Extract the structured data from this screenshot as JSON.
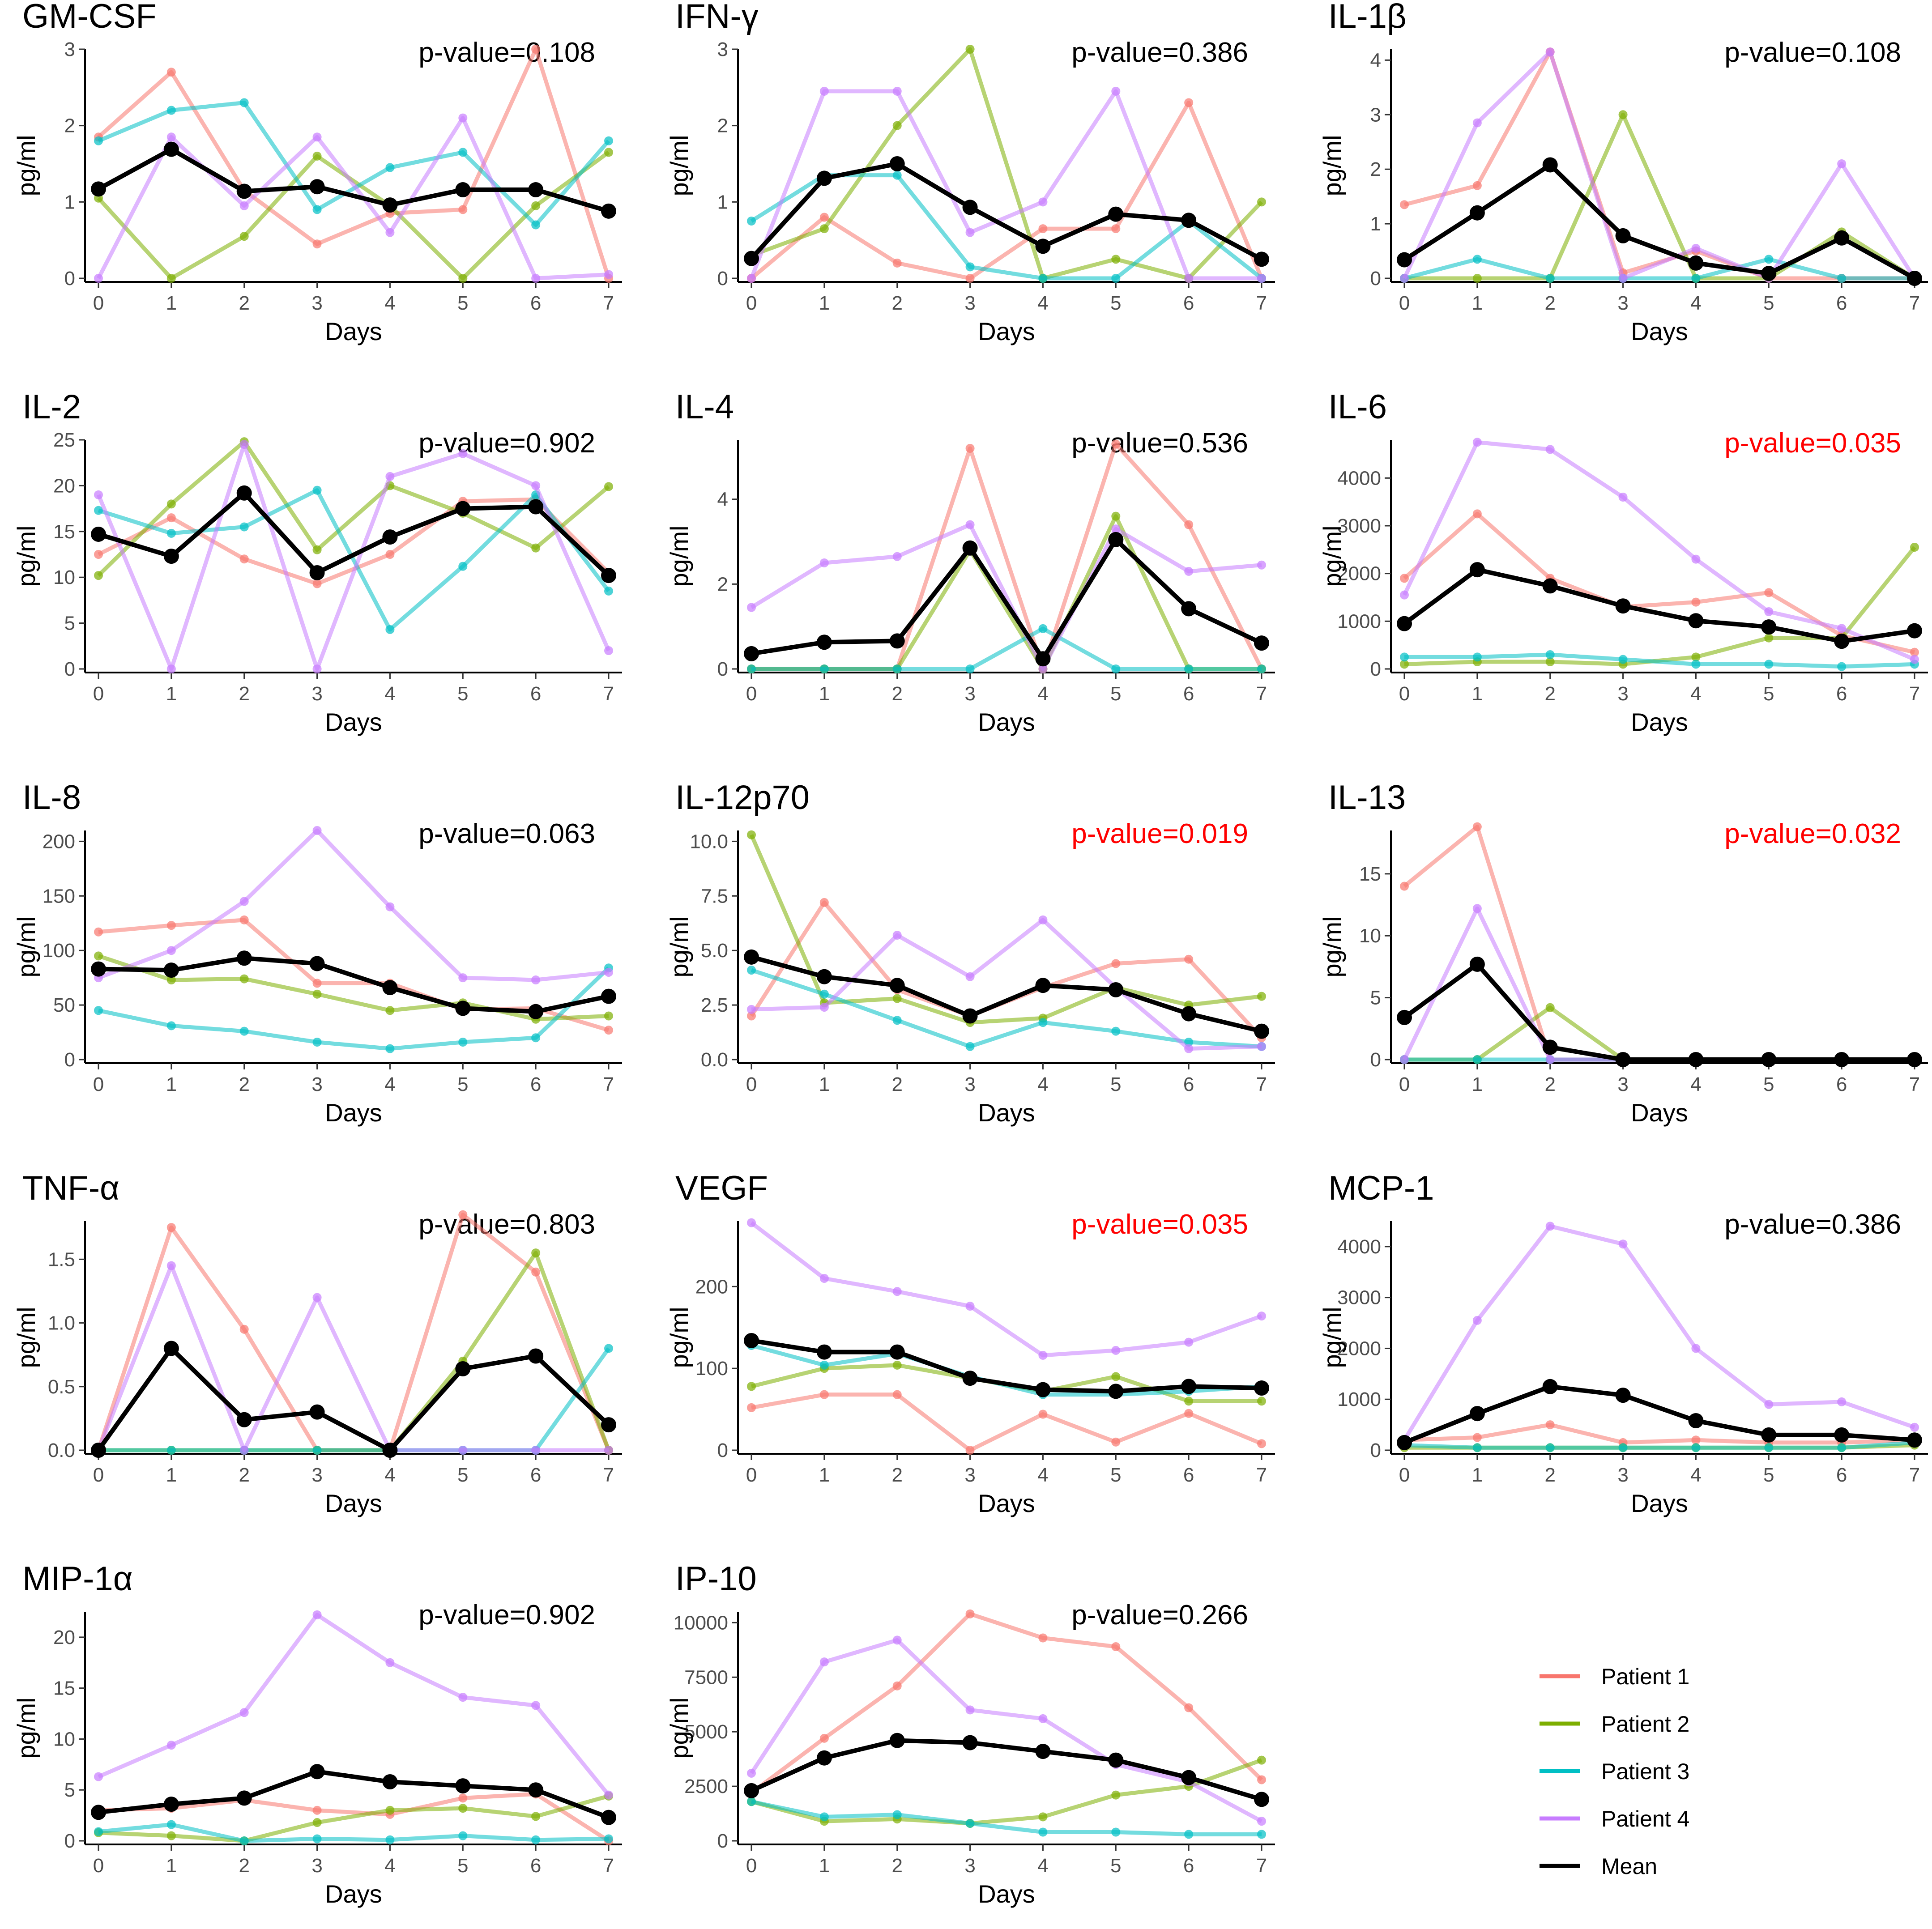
{
  "colors": {
    "patient1": "#F8766D",
    "patient2": "#7CAE00",
    "patient3": "#00BFC4",
    "patient4": "#C77CFF",
    "mean": "#000000",
    "significant": "#FF0000",
    "normal": "#000000"
  },
  "legend": {
    "items": [
      {
        "label": "Patient 1",
        "key": "p1"
      },
      {
        "label": "Patient 2",
        "key": "p2"
      },
      {
        "label": "Patient 3",
        "key": "p3"
      },
      {
        "label": "Patient 4",
        "key": "p4"
      },
      {
        "label": "Mean",
        "key": "mean"
      }
    ]
  },
  "chart_data": [
    {
      "type": "line",
      "title": "GM-CSF",
      "pvalue": "p-value=0.108",
      "significant": false,
      "xlabel": "Days",
      "ylabel": "pg/ml",
      "x": [
        0,
        1,
        2,
        3,
        4,
        5,
        6,
        7
      ],
      "ylim": [
        0,
        3.0
      ],
      "yticks": [
        0,
        1,
        2,
        3
      ],
      "ytick_labels": [
        "0",
        "1",
        "2",
        "3"
      ],
      "series": {
        "p1": [
          1.85,
          2.7,
          1.15,
          0.45,
          0.85,
          0.9,
          3.0,
          0.0
        ],
        "p2": [
          1.05,
          0.0,
          0.55,
          1.6,
          0.95,
          0.0,
          0.95,
          1.65
        ],
        "p3": [
          1.8,
          2.2,
          2.3,
          0.9,
          1.45,
          1.65,
          0.7,
          1.8
        ],
        "p4": [
          0.0,
          1.85,
          0.95,
          1.85,
          0.6,
          2.1,
          0.0,
          0.05
        ],
        "mean": [
          1.17,
          1.69,
          1.14,
          1.2,
          0.96,
          1.16,
          1.16,
          0.88
        ]
      }
    },
    {
      "type": "line",
      "title": "IFN-γ",
      "pvalue": "p-value=0.386",
      "significant": false,
      "xlabel": "Days",
      "ylabel": "pg/ml",
      "x": [
        0,
        1,
        2,
        3,
        4,
        5,
        6,
        7
      ],
      "ylim": [
        0,
        3.0
      ],
      "yticks": [
        0,
        1,
        2,
        3
      ],
      "ytick_labels": [
        "0",
        "1",
        "2",
        "3"
      ],
      "series": {
        "p1": [
          0.0,
          0.8,
          0.2,
          0.0,
          0.65,
          0.65,
          2.3,
          0.0
        ],
        "p2": [
          0.3,
          0.65,
          2.0,
          3.0,
          0.0,
          0.25,
          0.0,
          1.0
        ],
        "p3": [
          0.75,
          1.35,
          1.35,
          0.15,
          0.0,
          0.0,
          0.75,
          0.0
        ],
        "p4": [
          0.0,
          2.45,
          2.45,
          0.6,
          1.0,
          2.45,
          0.0,
          0.0
        ],
        "mean": [
          0.26,
          1.31,
          1.5,
          0.93,
          0.42,
          0.84,
          0.76,
          0.25
        ]
      }
    },
    {
      "type": "line",
      "title": "IL-1β",
      "pvalue": "p-value=0.108",
      "significant": false,
      "xlabel": "Days",
      "ylabel": "pg/ml",
      "x": [
        0,
        1,
        2,
        3,
        4,
        5,
        6,
        7
      ],
      "ylim": [
        0,
        4.2
      ],
      "yticks": [
        0,
        1,
        2,
        3,
        4
      ],
      "ytick_labels": [
        "0",
        "1",
        "2",
        "3",
        "4"
      ],
      "series": {
        "p1": [
          1.35,
          1.7,
          4.15,
          0.1,
          0.5,
          0.0,
          0.0,
          0.0
        ],
        "p2": [
          0.0,
          0.0,
          0.0,
          3.0,
          0.0,
          0.0,
          0.85,
          0.0
        ],
        "p3": [
          0.0,
          0.35,
          0.0,
          0.0,
          0.0,
          0.35,
          0.0,
          0.0
        ],
        "p4": [
          0.0,
          2.85,
          4.15,
          0.0,
          0.55,
          0.0,
          2.1,
          0.0
        ],
        "mean": [
          0.34,
          1.2,
          2.08,
          0.78,
          0.28,
          0.09,
          0.74,
          0.0
        ]
      }
    },
    {
      "type": "line",
      "title": "IL-2",
      "pvalue": "p-value=0.902",
      "significant": false,
      "xlabel": "Days",
      "ylabel": "pg/ml",
      "x": [
        0,
        1,
        2,
        3,
        4,
        5,
        6,
        7
      ],
      "ylim": [
        0,
        25
      ],
      "yticks": [
        0,
        5,
        10,
        15,
        20,
        25
      ],
      "ytick_labels": [
        "0",
        "5",
        "10",
        "15",
        "20",
        "25"
      ],
      "series": {
        "p1": [
          12.5,
          16.5,
          12.0,
          9.3,
          12.5,
          18.3,
          18.5,
          10.5
        ],
        "p2": [
          10.2,
          18.0,
          24.8,
          13.0,
          20.0,
          17.0,
          13.2,
          19.9
        ],
        "p3": [
          17.3,
          14.8,
          15.5,
          19.5,
          4.3,
          11.2,
          19.0,
          8.5
        ],
        "p4": [
          19.0,
          0.0,
          24.5,
          0.0,
          21.0,
          23.5,
          20.0,
          2.0
        ],
        "mean": [
          14.7,
          12.3,
          19.2,
          10.5,
          14.4,
          17.5,
          17.7,
          10.2
        ]
      }
    },
    {
      "type": "line",
      "title": "IL-4",
      "pvalue": "p-value=0.536",
      "significant": false,
      "xlabel": "Days",
      "ylabel": "pg/ml",
      "x": [
        0,
        1,
        2,
        3,
        4,
        5,
        6,
        7
      ],
      "ylim": [
        0,
        5.4
      ],
      "yticks": [
        0,
        2,
        4
      ],
      "ytick_labels": [
        "0",
        "2",
        "4"
      ],
      "series": {
        "p1": [
          0.0,
          0.0,
          0.0,
          5.2,
          0.0,
          5.3,
          3.4,
          0.0
        ],
        "p2": [
          0.0,
          0.0,
          0.0,
          2.8,
          0.0,
          3.6,
          0.0,
          0.0
        ],
        "p3": [
          0.0,
          0.0,
          0.0,
          0.0,
          0.95,
          0.0,
          0.0,
          0.0
        ],
        "p4": [
          1.45,
          2.5,
          2.65,
          3.4,
          0.0,
          3.3,
          2.3,
          2.45
        ],
        "mean": [
          0.36,
          0.63,
          0.66,
          2.85,
          0.24,
          3.05,
          1.42,
          0.61
        ]
      }
    },
    {
      "type": "line",
      "title": "IL-6",
      "pvalue": "p-value=0.035",
      "significant": true,
      "xlabel": "Days",
      "ylabel": "pg/ml",
      "x": [
        0,
        1,
        2,
        3,
        4,
        5,
        6,
        7
      ],
      "ylim": [
        0,
        4800
      ],
      "yticks": [
        0,
        1000,
        2000,
        3000,
        4000
      ],
      "ytick_labels": [
        "0",
        "1000",
        "2000",
        "3000",
        "4000"
      ],
      "series": {
        "p1": [
          1900,
          3250,
          1900,
          1300,
          1400,
          1600,
          700,
          350
        ],
        "p2": [
          100,
          150,
          150,
          100,
          250,
          650,
          650,
          2550
        ],
        "p3": [
          250,
          250,
          300,
          200,
          100,
          100,
          50,
          100
        ],
        "p4": [
          1550,
          4750,
          4600,
          3600,
          2300,
          1200,
          850,
          200
        ],
        "mean": [
          950,
          2080,
          1740,
          1320,
          1010,
          880,
          580,
          800
        ]
      }
    },
    {
      "type": "line",
      "title": "IL-8",
      "pvalue": "p-value=0.063",
      "significant": false,
      "xlabel": "Days",
      "ylabel": "pg/ml",
      "x": [
        0,
        1,
        2,
        3,
        4,
        5,
        6,
        7
      ],
      "ylim": [
        0,
        210
      ],
      "yticks": [
        0,
        50,
        100,
        150,
        200
      ],
      "ytick_labels": [
        "0",
        "50",
        "100",
        "150",
        "200"
      ],
      "series": {
        "p1": [
          117,
          123,
          128,
          70,
          70,
          46,
          47,
          27
        ],
        "p2": [
          95,
          73,
          74,
          60,
          45,
          52,
          37,
          40
        ],
        "p3": [
          45,
          31,
          26,
          16,
          10,
          16,
          20,
          84
        ],
        "p4": [
          75,
          100,
          145,
          210,
          140,
          75,
          73,
          80
        ],
        "mean": [
          83,
          82,
          93,
          88,
          66,
          47,
          44,
          58
        ]
      }
    },
    {
      "type": "line",
      "title": "IL-12p70",
      "pvalue": "p-value=0.019",
      "significant": true,
      "xlabel": "Days",
      "ylabel": "pg/ml",
      "x": [
        0,
        1,
        2,
        3,
        4,
        5,
        6,
        7
      ],
      "ylim": [
        0,
        10.5
      ],
      "yticks": [
        0,
        2.5,
        5,
        7.5,
        10
      ],
      "ytick_labels": [
        "0.0",
        "2.5",
        "5.0",
        "7.5",
        "10.0"
      ],
      "series": {
        "p1": [
          2.0,
          7.2,
          3.2,
          2.0,
          3.3,
          4.4,
          4.6,
          1.0
        ],
        "p2": [
          10.3,
          2.6,
          2.8,
          1.7,
          1.9,
          3.3,
          2.5,
          2.9
        ],
        "p3": [
          4.1,
          3.0,
          1.8,
          0.6,
          1.7,
          1.3,
          0.8,
          0.6
        ],
        "p4": [
          2.3,
          2.4,
          5.7,
          3.8,
          6.4,
          3.3,
          0.5,
          0.6
        ],
        "mean": [
          4.7,
          3.8,
          3.4,
          2.0,
          3.4,
          3.2,
          2.1,
          1.3
        ]
      }
    },
    {
      "type": "line",
      "title": "IL-13",
      "pvalue": "p-value=0.032",
      "significant": true,
      "xlabel": "Days",
      "ylabel": "pg/ml",
      "x": [
        0,
        1,
        2,
        3,
        4,
        5,
        6,
        7
      ],
      "ylim": [
        0,
        18.5
      ],
      "yticks": [
        0,
        5,
        10,
        15
      ],
      "ytick_labels": [
        "0",
        "5",
        "10",
        "15"
      ],
      "series": {
        "p1": [
          14.0,
          18.8,
          0.0,
          0.0,
          0.0,
          0.0,
          0.0,
          0.0
        ],
        "p2": [
          0.0,
          0.0,
          4.2,
          0.0,
          0.0,
          0.0,
          0.0,
          0.0
        ],
        "p3": [
          0.0,
          0.0,
          0.0,
          0.0,
          0.0,
          0.0,
          0.0,
          0.0
        ],
        "p4": [
          0.0,
          12.2,
          0.0,
          0.0,
          0.0,
          0.0,
          0.0,
          0.0
        ],
        "mean": [
          3.4,
          7.7,
          1.0,
          0.0,
          0.0,
          0.0,
          0.0,
          0.0
        ]
      }
    },
    {
      "type": "line",
      "title": "TNF-α",
      "pvalue": "p-value=0.803",
      "significant": false,
      "xlabel": "Days",
      "ylabel": "pg/ml",
      "x": [
        0,
        1,
        2,
        3,
        4,
        5,
        6,
        7
      ],
      "ylim": [
        0,
        1.8
      ],
      "yticks": [
        0,
        0.5,
        1,
        1.5
      ],
      "ytick_labels": [
        "0.0",
        "0.5",
        "1.0",
        "1.5"
      ],
      "series": {
        "p1": [
          0.0,
          1.75,
          0.95,
          0.0,
          0.0,
          1.85,
          1.4,
          0.0
        ],
        "p2": [
          0.0,
          0.0,
          0.0,
          0.0,
          0.0,
          0.7,
          1.55,
          0.0
        ],
        "p3": [
          0.0,
          0.0,
          0.0,
          0.0,
          0.0,
          0.0,
          0.0,
          0.8
        ],
        "p4": [
          0.0,
          1.45,
          0.0,
          1.2,
          0.0,
          0.0,
          0.0,
          0.0
        ],
        "mean": [
          0.0,
          0.8,
          0.24,
          0.3,
          0.0,
          0.64,
          0.74,
          0.2
        ]
      }
    },
    {
      "type": "line",
      "title": "VEGF",
      "pvalue": "p-value=0.035",
      "significant": true,
      "xlabel": "Days",
      "ylabel": "pg/ml",
      "x": [
        0,
        1,
        2,
        3,
        4,
        5,
        6,
        7
      ],
      "ylim": [
        0,
        280
      ],
      "yticks": [
        0,
        100,
        200
      ],
      "ytick_labels": [
        "0",
        "100",
        "200"
      ],
      "series": {
        "p1": [
          52,
          68,
          68,
          0,
          44,
          10,
          45,
          8
        ],
        "p2": [
          78,
          100,
          104,
          88,
          72,
          90,
          60,
          60
        ],
        "p3": [
          128,
          104,
          118,
          90,
          68,
          68,
          72,
          78
        ],
        "p4": [
          278,
          210,
          194,
          176,
          116,
          122,
          132,
          164
        ],
        "mean": [
          134,
          120,
          120,
          88,
          74,
          72,
          78,
          76
        ]
      }
    },
    {
      "type": "line",
      "title": "MCP-1",
      "pvalue": "p-value=0.386",
      "significant": false,
      "xlabel": "Days",
      "ylabel": "pg/ml",
      "x": [
        0,
        1,
        2,
        3,
        4,
        5,
        6,
        7
      ],
      "ylim": [
        0,
        4500
      ],
      "yticks": [
        0,
        1000,
        2000,
        3000,
        4000
      ],
      "ytick_labels": [
        "0",
        "1000",
        "2000",
        "3000",
        "4000"
      ],
      "series": {
        "p1": [
          200,
          250,
          500,
          150,
          200,
          150,
          150,
          200
        ],
        "p2": [
          50,
          50,
          50,
          50,
          50,
          50,
          50,
          100
        ],
        "p3": [
          100,
          50,
          50,
          50,
          50,
          50,
          50,
          150
        ],
        "p4": [
          200,
          2550,
          4400,
          4050,
          2000,
          900,
          950,
          450
        ],
        "mean": [
          150,
          720,
          1250,
          1080,
          580,
          300,
          300,
          200
        ]
      }
    },
    {
      "type": "line",
      "title": "MIP-1α",
      "pvalue": "p-value=0.902",
      "significant": false,
      "xlabel": "Days",
      "ylabel": "pg/ml",
      "x": [
        0,
        1,
        2,
        3,
        4,
        5,
        6,
        7
      ],
      "ylim": [
        0,
        22.5
      ],
      "yticks": [
        0,
        5,
        10,
        15,
        20
      ],
      "ytick_labels": [
        "0",
        "5",
        "10",
        "15",
        "20"
      ],
      "series": {
        "p1": [
          3.0,
          3.2,
          4.0,
          3.0,
          2.6,
          4.2,
          4.6,
          0.0
        ],
        "p2": [
          0.8,
          0.5,
          0.0,
          1.8,
          3.0,
          3.2,
          2.4,
          4.4
        ],
        "p3": [
          0.9,
          1.6,
          0.0,
          0.2,
          0.1,
          0.5,
          0.1,
          0.2
        ],
        "p4": [
          6.3,
          9.4,
          12.6,
          22.2,
          17.5,
          14.1,
          13.3,
          4.5
        ],
        "mean": [
          2.8,
          3.6,
          4.2,
          6.8,
          5.8,
          5.4,
          5.0,
          2.3
        ]
      }
    },
    {
      "type": "line",
      "title": "IP-10",
      "pvalue": "p-value=0.266",
      "significant": false,
      "xlabel": "Days",
      "ylabel": "pg/ml",
      "x": [
        0,
        1,
        2,
        3,
        4,
        5,
        6,
        7
      ],
      "ylim": [
        0,
        10500
      ],
      "yticks": [
        0,
        2500,
        5000,
        7500,
        10000
      ],
      "ytick_labels": [
        "0",
        "2500",
        "5000",
        "7500",
        "10000"
      ],
      "series": {
        "p1": [
          2200,
          4700,
          7100,
          10400,
          9300,
          8900,
          6100,
          2800
        ],
        "p2": [
          1800,
          900,
          1000,
          800,
          1100,
          2100,
          2500,
          3700
        ],
        "p3": [
          1800,
          1100,
          1200,
          800,
          400,
          400,
          300,
          300
        ],
        "p4": [
          3100,
          8200,
          9200,
          6000,
          5600,
          3500,
          2700,
          900
        ],
        "mean": [
          2300,
          3800,
          4600,
          4500,
          4100,
          3700,
          2900,
          1900
        ]
      }
    }
  ]
}
